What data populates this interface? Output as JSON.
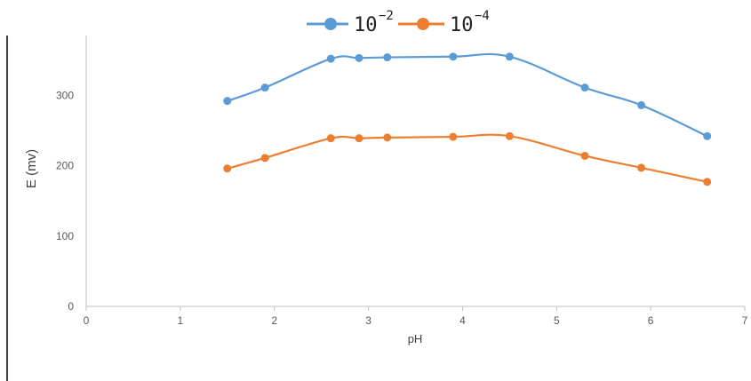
{
  "chart_data": {
    "type": "line",
    "xlabel": "pH",
    "ylabel": "E (mv)",
    "xlim": [
      0,
      7
    ],
    "ylim": [
      0,
      350
    ],
    "x_ticks": [
      "0",
      "1",
      "2",
      "3",
      "4",
      "5",
      "6",
      "7"
    ],
    "y_ticks": [
      "0",
      "100",
      "200",
      "300"
    ],
    "grid": false,
    "legend_position": "top",
    "series": [
      {
        "name_base": "10",
        "name_exp": "−2",
        "color": "#5B9BD5",
        "x": [
          1.5,
          1.9,
          2.6,
          2.9,
          3.2,
          3.9,
          4.5,
          5.3,
          5.9,
          6.6
        ],
        "y": [
          292,
          311,
          352,
          353,
          354,
          355,
          355,
          311,
          286,
          242
        ]
      },
      {
        "name_base": "10",
        "name_exp": "−4",
        "color": "#ED7D31",
        "x": [
          1.5,
          1.9,
          2.6,
          2.9,
          3.2,
          3.9,
          4.5,
          5.3,
          5.9,
          6.6
        ],
        "y": [
          196,
          211,
          239,
          239,
          240,
          241,
          242,
          214,
          197,
          177
        ]
      }
    ]
  }
}
